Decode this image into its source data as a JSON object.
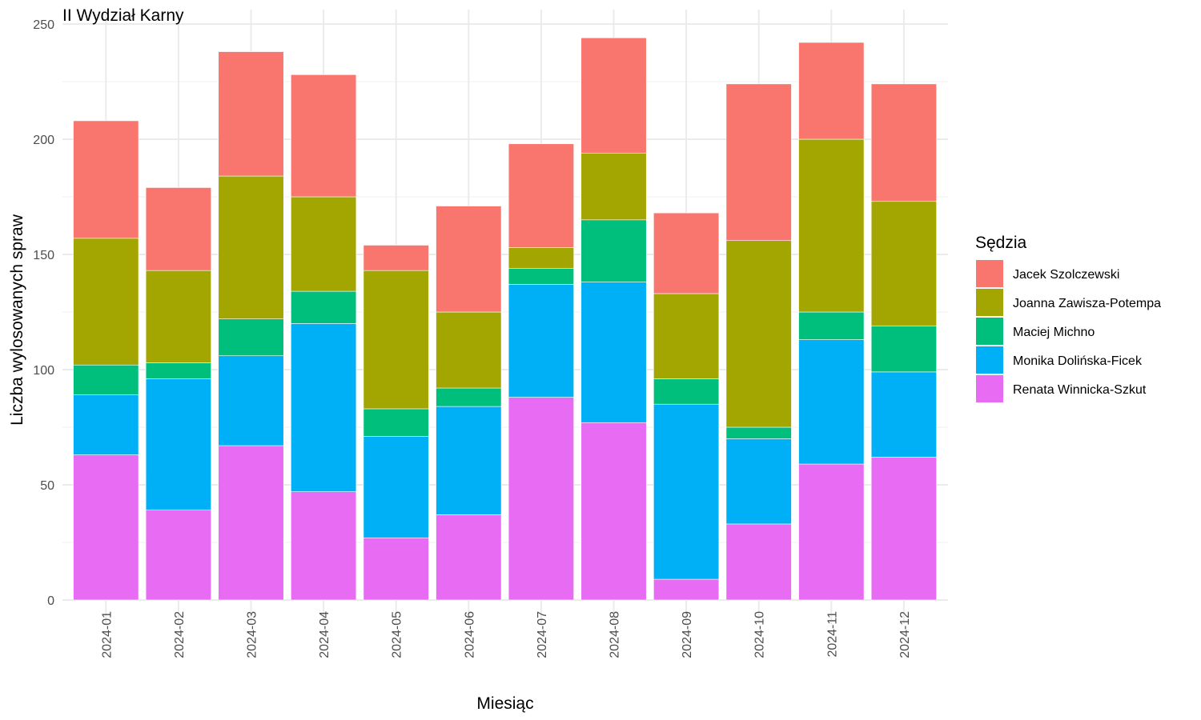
{
  "chart_data": {
    "type": "bar",
    "stacked": true,
    "title": "II Wydział Karny",
    "xlabel": "Miesiąc",
    "ylabel": "Liczba wylosowanych spraw",
    "ylim": [
      0,
      250
    ],
    "yticks": [
      0,
      50,
      100,
      150,
      200,
      250
    ],
    "grid": true,
    "legend_position": "right",
    "legend_title": "Sędzia",
    "categories": [
      "2024-01",
      "2024-02",
      "2024-03",
      "2024-04",
      "2024-05",
      "2024-06",
      "2024-07",
      "2024-08",
      "2024-09",
      "2024-10",
      "2024-11",
      "2024-12"
    ],
    "series": [
      {
        "name": "Jacek Szolczewski",
        "color": "#F8766D",
        "values": [
          51,
          36,
          54,
          53,
          11,
          46,
          45,
          50,
          35,
          68,
          42,
          51
        ]
      },
      {
        "name": "Joanna Zawisza-Potempa",
        "color": "#A3A500",
        "values": [
          55,
          40,
          62,
          41,
          60,
          33,
          9,
          29,
          37,
          81,
          75,
          54
        ]
      },
      {
        "name": "Maciej Michno",
        "color": "#00BF7D",
        "values": [
          13,
          7,
          16,
          14,
          12,
          8,
          7,
          27,
          11,
          5,
          12,
          20
        ]
      },
      {
        "name": "Monika Dolińska-Ficek",
        "color": "#00B0F6",
        "values": [
          26,
          57,
          39,
          73,
          44,
          47,
          49,
          61,
          76,
          37,
          54,
          37
        ]
      },
      {
        "name": "Renata Winnicka-Szkut",
        "color": "#E76BF3",
        "values": [
          63,
          39,
          67,
          47,
          27,
          37,
          88,
          77,
          9,
          33,
          59,
          62
        ]
      }
    ]
  }
}
